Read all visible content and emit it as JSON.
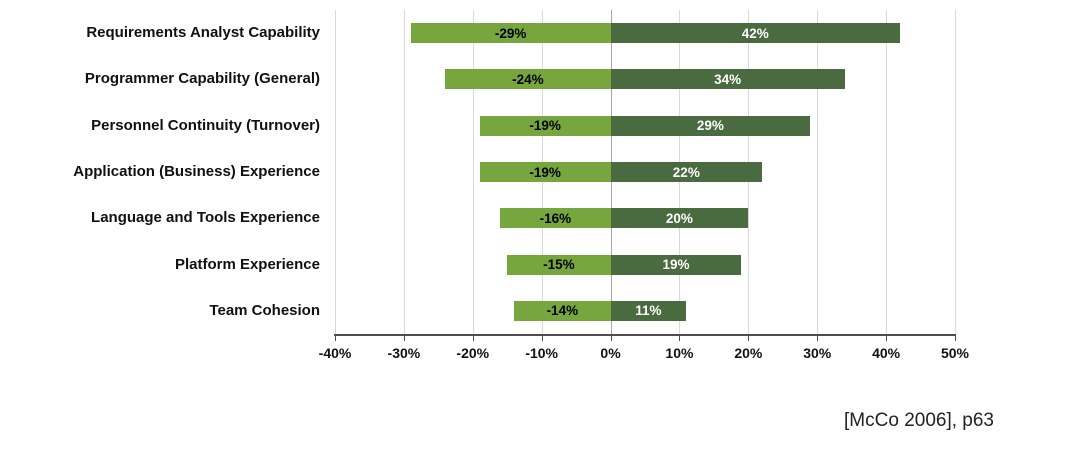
{
  "caption": "[McCo 2006], p63",
  "chart_data": {
    "type": "bar",
    "orientation": "horizontal-diverging",
    "title": "",
    "xlabel": "",
    "ylabel": "",
    "categories": [
      "Requirements Analyst Capability",
      "Programmer Capability (General)",
      "Personnel Continuity (Turnover)",
      "Application (Business) Experience",
      "Language and Tools Experience",
      "Platform Experience",
      "Team Cohesion"
    ],
    "series": [
      {
        "name": "decrease",
        "color": "#77a53e",
        "label_color": "#000000",
        "values": [
          -29,
          -24,
          -19,
          -19,
          -16,
          -15,
          -14
        ],
        "labels": [
          "-29%",
          "-24%",
          "-19%",
          "-19%",
          "-16%",
          "-15%",
          "-14%"
        ]
      },
      {
        "name": "increase",
        "color": "#4a6a40",
        "label_color": "#ffffff",
        "values": [
          42,
          34,
          29,
          22,
          20,
          19,
          11
        ],
        "labels": [
          "42%",
          "34%",
          "29%",
          "22%",
          "20%",
          "19%",
          "11%"
        ]
      }
    ],
    "xlim": [
      -40,
      50
    ],
    "xtick_values": [
      -40,
      -30,
      -20,
      -10,
      0,
      10,
      20,
      30,
      40,
      50
    ],
    "xtick_labels": [
      "-40%",
      "-30%",
      "-20%",
      "-10%",
      "0%",
      "10%",
      "20%",
      "30%",
      "40%",
      "50%"
    ],
    "grid": true,
    "legend": false,
    "gridline_color": "#d9d9d9",
    "axis_color": "#4d4d4d"
  }
}
